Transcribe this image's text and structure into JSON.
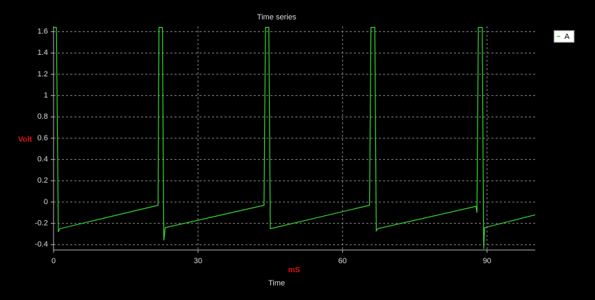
{
  "chart_data": {
    "type": "line",
    "title": "Time series",
    "y_label": "Volt",
    "x_unit": "mS",
    "x_label": "Time",
    "x": [
      0,
      0.6,
      0.8,
      1.0,
      1.3,
      21.7,
      21.9,
      22.6,
      22.9,
      23.2,
      43.7,
      44.0,
      44.7,
      45.0,
      65.6,
      65.9,
      66.7,
      67.0,
      67.3,
      87.7,
      87.9,
      88.2,
      89.0,
      89.3,
      89.5,
      100
    ],
    "series": [
      {
        "name": "A",
        "color": "#33dd33",
        "values": [
          1.64,
          1.64,
          0.7,
          -0.28,
          -0.25,
          -0.03,
          1.64,
          1.64,
          -0.36,
          -0.24,
          -0.03,
          1.64,
          1.64,
          -0.25,
          -0.03,
          1.64,
          1.64,
          -0.27,
          -0.25,
          -0.04,
          -0.1,
          1.64,
          1.64,
          -0.44,
          -0.24,
          -0.12
        ]
      }
    ],
    "xlim": [
      0,
      100
    ],
    "xticks": [
      0,
      30,
      60,
      90
    ],
    "ylim": [
      -0.45,
      1.65
    ],
    "yticks": [
      -0.4,
      -0.2,
      0,
      0.2,
      0.4,
      0.6,
      0.8,
      1,
      1.2,
      1.4,
      1.6
    ],
    "grid": true,
    "legend": "outside-right"
  }
}
